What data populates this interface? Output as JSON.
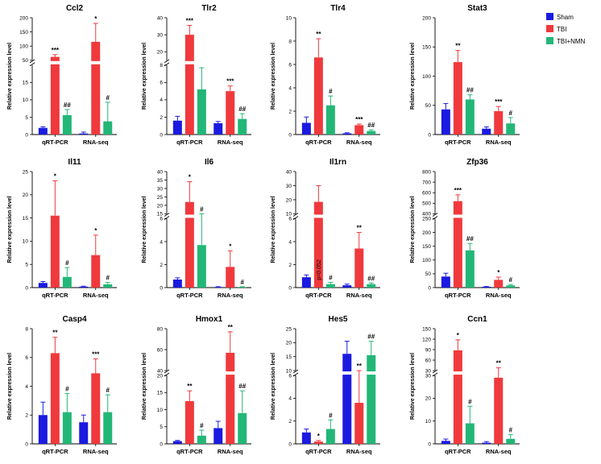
{
  "colors": {
    "Sham": "#1a1ae0",
    "TBI": "#f0393c",
    "TBI+NMN": "#22b777"
  },
  "chart_data": {
    "type": "bar",
    "figure_legend": [
      "Sham",
      "TBI",
      "TBI+NMN"
    ],
    "ylabel": "Relative expression level",
    "categories": [
      "qRT-PCR",
      "RNA-seq"
    ],
    "panels": [
      {
        "title": "Ccl2",
        "segments": [
          {
            "min": 0,
            "max": 20,
            "ticks": [
              0,
              5,
              10,
              15
            ]
          },
          {
            "min": 50,
            "max": 200,
            "ticks": [
              50,
              100,
              150,
              200
            ]
          }
        ],
        "series": [
          {
            "name": "Sham",
            "values": [
              1.9,
              0.3
            ],
            "errors": [
              0.3,
              0.4
            ],
            "sig": [
              "",
              ""
            ]
          },
          {
            "name": "TBI",
            "values": [
              62,
              115
            ],
            "errors": [
              8,
              65
            ],
            "sig": [
              "***",
              "*"
            ]
          },
          {
            "name": "TBI+NMN",
            "values": [
              5.6,
              3.8
            ],
            "errors": [
              1.6,
              5.5
            ],
            "sig": [
              "##",
              "#"
            ]
          }
        ]
      },
      {
        "title": "Tlr2",
        "segments": [
          {
            "min": 0,
            "max": 8,
            "ticks": [
              0,
              2,
              4,
              6,
              8
            ]
          },
          {
            "min": 15,
            "max": 40,
            "ticks": [
              20,
              30,
              40
            ]
          }
        ],
        "series": [
          {
            "name": "Sham",
            "values": [
              1.6,
              1.3
            ],
            "errors": [
              0.5,
              0.2
            ],
            "sig": [
              "",
              ""
            ]
          },
          {
            "name": "TBI",
            "values": [
              30,
              5.0
            ],
            "errors": [
              5.5,
              0.6
            ],
            "sig": [
              "***",
              "***"
            ]
          },
          {
            "name": "TBI+NMN",
            "values": [
              5.2,
              1.8
            ],
            "errors": [
              2.5,
              0.6
            ],
            "sig": [
              "",
              "##"
            ]
          }
        ]
      },
      {
        "title": "Tlr4",
        "segments": [
          {
            "min": 0,
            "max": 10,
            "ticks": [
              0,
              2,
              4,
              6,
              8,
              10
            ]
          }
        ],
        "series": [
          {
            "name": "Sham",
            "values": [
              1.0,
              0.1
            ],
            "errors": [
              0.5,
              0.05
            ],
            "sig": [
              "",
              ""
            ]
          },
          {
            "name": "TBI",
            "values": [
              6.6,
              0.8
            ],
            "errors": [
              1.6,
              0.1
            ],
            "sig": [
              "**",
              "***"
            ]
          },
          {
            "name": "TBI+NMN",
            "values": [
              2.5,
              0.3
            ],
            "errors": [
              0.8,
              0.1
            ],
            "sig": [
              "#",
              "##"
            ]
          }
        ]
      },
      {
        "title": "Stat3",
        "segments": [
          {
            "min": 0,
            "max": 200,
            "ticks": [
              0,
              50,
              100,
              150,
              200
            ]
          }
        ],
        "series": [
          {
            "name": "Sham",
            "values": [
              43,
              10
            ],
            "errors": [
              10,
              3
            ],
            "sig": [
              "",
              ""
            ]
          },
          {
            "name": "TBI",
            "values": [
              124,
              40
            ],
            "errors": [
              20,
              8
            ],
            "sig": [
              "**",
              "***"
            ]
          },
          {
            "name": "TBI+NMN",
            "values": [
              60,
              19
            ],
            "errors": [
              8,
              10
            ],
            "sig": [
              "##",
              "#"
            ]
          }
        ]
      },
      {
        "title": "Il11",
        "segments": [
          {
            "min": 0,
            "max": 25,
            "ticks": [
              0,
              5,
              10,
              15,
              20,
              25
            ]
          }
        ],
        "series": [
          {
            "name": "Sham",
            "values": [
              1.0,
              0.2
            ],
            "errors": [
              0.3,
              0.1
            ],
            "sig": [
              "",
              ""
            ]
          },
          {
            "name": "TBI",
            "values": [
              15.5,
              7.0
            ],
            "errors": [
              7.5,
              4.3
            ],
            "sig": [
              "*",
              "*"
            ]
          },
          {
            "name": "TBI+NMN",
            "values": [
              2.3,
              0.7
            ],
            "errors": [
              2.0,
              0.4
            ],
            "sig": [
              "#",
              "#"
            ]
          }
        ]
      },
      {
        "title": "Il6",
        "segments": [
          {
            "min": 0,
            "max": 6,
            "ticks": [
              0,
              2,
              4,
              6
            ]
          },
          {
            "min": 15,
            "max": 40,
            "ticks": [
              15,
              20,
              25,
              30,
              35,
              40
            ]
          }
        ],
        "series": [
          {
            "name": "Sham",
            "values": [
              0.7,
              0.05
            ],
            "errors": [
              0.15,
              0.03
            ],
            "sig": [
              "",
              ""
            ]
          },
          {
            "name": "TBI",
            "values": [
              22,
              1.8
            ],
            "errors": [
              12,
              1.4
            ],
            "sig": [
              "*",
              "*"
            ]
          },
          {
            "name": "TBI+NMN",
            "values": [
              3.7,
              0.05
            ],
            "errors": [
              2.5,
              0.03
            ],
            "sig": [
              "#",
              "#"
            ]
          }
        ]
      },
      {
        "title": "Il1rn",
        "segments": [
          {
            "min": 0,
            "max": 6,
            "ticks": [
              0,
              2,
              4,
              6
            ]
          },
          {
            "min": 10,
            "max": 40,
            "ticks": [
              10,
              20,
              30,
              40
            ]
          }
        ],
        "series": [
          {
            "name": "Sham",
            "values": [
              0.9,
              0.2
            ],
            "errors": [
              0.2,
              0.1
            ],
            "sig": [
              "",
              ""
            ]
          },
          {
            "name": "TBI",
            "values": [
              18.5,
              3.4
            ],
            "errors": [
              11.5,
              1.4
            ],
            "sig": [
              "p=0.052",
              "**"
            ]
          },
          {
            "name": "TBI+NMN",
            "values": [
              0.3,
              0.3
            ],
            "errors": [
              0.15,
              0.1
            ],
            "sig": [
              "#",
              "##"
            ]
          }
        ]
      },
      {
        "title": "Zfp36",
        "segments": [
          {
            "min": 0,
            "max": 250,
            "ticks": [
              0,
              50,
              100,
              150,
              200,
              250
            ]
          },
          {
            "min": 400,
            "max": 800,
            "ticks": [
              400,
              500,
              600,
              700,
              800
            ]
          }
        ],
        "series": [
          {
            "name": "Sham",
            "values": [
              40,
              3
            ],
            "errors": [
              12,
              1
            ],
            "sig": [
              "",
              ""
            ]
          },
          {
            "name": "TBI",
            "values": [
              520,
              28
            ],
            "errors": [
              60,
              10
            ],
            "sig": [
              "***",
              "*"
            ]
          },
          {
            "name": "TBI+NMN",
            "values": [
              135,
              8
            ],
            "errors": [
              25,
              3
            ],
            "sig": [
              "##",
              "#"
            ]
          }
        ]
      },
      {
        "title": "Casp4",
        "segments": [
          {
            "min": 0,
            "max": 8,
            "ticks": [
              0,
              2,
              4,
              6,
              8
            ]
          }
        ],
        "series": [
          {
            "name": "Sham",
            "values": [
              2.0,
              1.5
            ],
            "errors": [
              0.9,
              0.5
            ],
            "sig": [
              "",
              ""
            ]
          },
          {
            "name": "TBI",
            "values": [
              6.3,
              4.9
            ],
            "errors": [
              1.1,
              1.0
            ],
            "sig": [
              "**",
              "***"
            ]
          },
          {
            "name": "TBI+NMN",
            "values": [
              2.2,
              2.2
            ],
            "errors": [
              1.3,
              1.2
            ],
            "sig": [
              "#",
              "#"
            ]
          }
        ]
      },
      {
        "title": "Hmox1",
        "segments": [
          {
            "min": 0,
            "max": 20,
            "ticks": [
              0,
              5,
              10,
              15,
              20
            ]
          },
          {
            "min": 40,
            "max": 80,
            "ticks": [
              40,
              60,
              80
            ]
          }
        ],
        "series": [
          {
            "name": "Sham",
            "values": [
              0.8,
              4.6
            ],
            "errors": [
              0.2,
              2.0
            ],
            "sig": [
              "",
              ""
            ]
          },
          {
            "name": "TBI",
            "values": [
              12.5,
              57
            ],
            "errors": [
              3,
              20
            ],
            "sig": [
              "**",
              "**"
            ]
          },
          {
            "name": "TBI+NMN",
            "values": [
              2.4,
              9.0
            ],
            "errors": [
              1.6,
              6.5
            ],
            "sig": [
              "#",
              "##"
            ]
          }
        ]
      },
      {
        "title": "Hes5",
        "segments": [
          {
            "min": 0,
            "max": 6,
            "ticks": [
              0,
              2,
              4,
              6
            ]
          },
          {
            "min": 10,
            "max": 25,
            "ticks": [
              10,
              15,
              20,
              25
            ]
          }
        ],
        "series": [
          {
            "name": "Sham",
            "values": [
              1.0,
              16
            ],
            "errors": [
              0.3,
              4.5
            ],
            "sig": [
              "",
              ""
            ]
          },
          {
            "name": "TBI",
            "values": [
              0.2,
              3.6
            ],
            "errors": [
              0.1,
              2.6
            ],
            "sig": [
              "*",
              "**"
            ]
          },
          {
            "name": "TBI+NMN",
            "values": [
              1.3,
              15.5
            ],
            "errors": [
              0.8,
              5
            ],
            "sig": [
              "#",
              "##"
            ]
          }
        ]
      },
      {
        "title": "Ccn1",
        "segments": [
          {
            "min": 0,
            "max": 30,
            "ticks": [
              0,
              10,
              20,
              30
            ]
          },
          {
            "min": 30,
            "max": 150,
            "ticks": [
              30,
              60,
              90,
              120,
              150
            ]
          }
        ],
        "series": [
          {
            "name": "Sham",
            "values": [
              1.3,
              0.5
            ],
            "errors": [
              0.8,
              0.5
            ],
            "sig": [
              "",
              ""
            ]
          },
          {
            "name": "TBI",
            "values": [
              88,
              29
            ],
            "errors": [
              30,
              9
            ],
            "sig": [
              "*",
              "**"
            ]
          },
          {
            "name": "TBI+NMN",
            "values": [
              9.0,
              2.2
            ],
            "errors": [
              7.5,
              1.8
            ],
            "sig": [
              "#",
              "#"
            ]
          }
        ]
      }
    ]
  }
}
